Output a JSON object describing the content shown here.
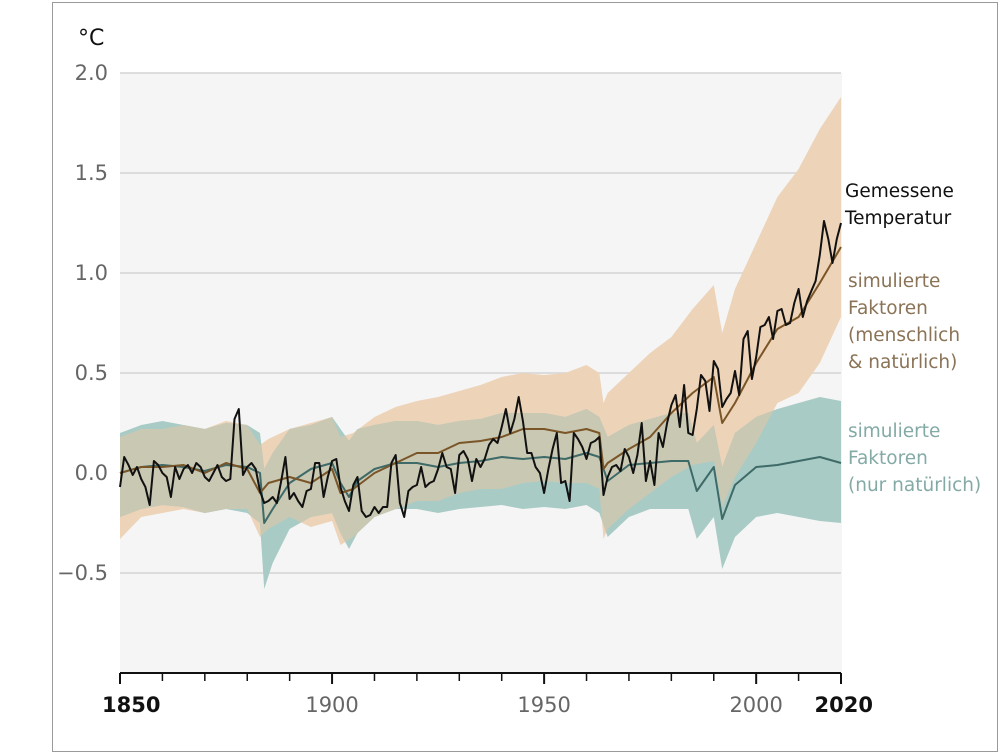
{
  "chart_data": {
    "type": "line",
    "unit_label": "°C",
    "x_range": [
      1850,
      2020
    ],
    "ylim": [
      -1.0,
      2.0
    ],
    "y_ticks": [
      {
        "value": 2.0,
        "label": "2.0"
      },
      {
        "value": 1.5,
        "label": "1.5"
      },
      {
        "value": 1.0,
        "label": "1.0"
      },
      {
        "value": 0.5,
        "label": "0.5"
      },
      {
        "value": 0.0,
        "label": "0.0"
      },
      {
        "value": -0.5,
        "label": "−0.5"
      }
    ],
    "x_ticks": [
      {
        "value": 1850,
        "label": "1850",
        "bold": true
      },
      {
        "value": 1900,
        "label": "1900",
        "bold": false
      },
      {
        "value": 1950,
        "label": "1950",
        "bold": false
      },
      {
        "value": 2000,
        "label": "2000",
        "bold": false
      },
      {
        "value": 2020,
        "label": "2020",
        "bold": true
      }
    ],
    "x_minor_ticks": [
      1860,
      1870,
      1880,
      1890,
      1910,
      1920,
      1930,
      1940,
      1960,
      1970,
      1980,
      1990,
      2010
    ],
    "grid": true,
    "colors": {
      "plot_bg": "#f5f5f5",
      "grid": "#d4d4d4",
      "observed": "#111111",
      "human_natural_line": "#7a5527",
      "human_natural_band": "#edd3b7",
      "natural_line": "#3e6a68",
      "natural_band": "#a9cbc6",
      "overlap_band": "#c9c8b3"
    },
    "series": [
      {
        "key": "observed",
        "name_lines": [
          "Gemessene",
          "Temperatur"
        ],
        "x": [
          1850,
          1851,
          1852,
          1853,
          1854,
          1855,
          1856,
          1857,
          1858,
          1859,
          1860,
          1861,
          1862,
          1863,
          1864,
          1865,
          1866,
          1867,
          1868,
          1869,
          1870,
          1871,
          1872,
          1873,
          1874,
          1875,
          1876,
          1877,
          1878,
          1879,
          1880,
          1881,
          1882,
          1883,
          1884,
          1885,
          1886,
          1887,
          1888,
          1889,
          1890,
          1891,
          1892,
          1893,
          1894,
          1895,
          1896,
          1897,
          1898,
          1899,
          1900,
          1901,
          1902,
          1903,
          1904,
          1905,
          1906,
          1907,
          1908,
          1909,
          1910,
          1911,
          1912,
          1913,
          1914,
          1915,
          1916,
          1917,
          1918,
          1919,
          1920,
          1921,
          1922,
          1923,
          1924,
          1925,
          1926,
          1927,
          1928,
          1929,
          1930,
          1931,
          1932,
          1933,
          1934,
          1935,
          1936,
          1937,
          1938,
          1939,
          1940,
          1941,
          1942,
          1943,
          1944,
          1945,
          1946,
          1947,
          1948,
          1949,
          1950,
          1951,
          1952,
          1953,
          1954,
          1955,
          1956,
          1957,
          1958,
          1959,
          1960,
          1961,
          1962,
          1963,
          1964,
          1965,
          1966,
          1967,
          1968,
          1969,
          1970,
          1971,
          1972,
          1973,
          1974,
          1975,
          1976,
          1977,
          1978,
          1979,
          1980,
          1981,
          1982,
          1983,
          1984,
          1985,
          1986,
          1987,
          1988,
          1989,
          1990,
          1991,
          1992,
          1993,
          1994,
          1995,
          1996,
          1997,
          1998,
          1999,
          2000,
          2001,
          2002,
          2003,
          2004,
          2005,
          2006,
          2007,
          2008,
          2009,
          2010,
          2011,
          2012,
          2013,
          2014,
          2015,
          2016,
          2017,
          2018,
          2019,
          2020
        ],
        "y": [
          -0.07,
          0.08,
          0.04,
          -0.01,
          0.03,
          -0.03,
          -0.07,
          -0.16,
          0.06,
          0.04,
          0.0,
          -0.02,
          -0.12,
          0.03,
          -0.03,
          0.02,
          0.04,
          0.0,
          0.05,
          0.03,
          -0.02,
          -0.04,
          0.0,
          0.04,
          -0.02,
          -0.04,
          -0.03,
          0.27,
          0.32,
          -0.01,
          0.03,
          0.05,
          0.02,
          -0.09,
          -0.15,
          -0.14,
          -0.12,
          -0.15,
          -0.04,
          0.08,
          -0.13,
          -0.1,
          -0.14,
          -0.17,
          -0.09,
          -0.08,
          0.05,
          0.05,
          -0.12,
          -0.02,
          0.06,
          0.07,
          -0.07,
          -0.14,
          -0.19,
          -0.06,
          -0.02,
          -0.19,
          -0.22,
          -0.21,
          -0.17,
          -0.2,
          -0.17,
          -0.17,
          0.05,
          0.09,
          -0.15,
          -0.22,
          -0.09,
          -0.07,
          -0.06,
          0.03,
          -0.07,
          -0.05,
          -0.04,
          0.02,
          0.1,
          0.03,
          0.02,
          -0.1,
          0.09,
          0.11,
          0.07,
          -0.04,
          0.07,
          0.03,
          0.07,
          0.14,
          0.17,
          0.15,
          0.23,
          0.32,
          0.2,
          0.27,
          0.38,
          0.26,
          0.1,
          0.1,
          0.03,
          0.0,
          -0.1,
          0.02,
          0.12,
          0.2,
          -0.05,
          -0.04,
          -0.14,
          0.2,
          0.17,
          0.13,
          0.07,
          0.15,
          0.16,
          0.18,
          -0.11,
          -0.02,
          0.03,
          0.04,
          0.01,
          0.12,
          0.08,
          0.0,
          0.09,
          0.25,
          -0.04,
          0.06,
          -0.06,
          0.2,
          0.13,
          0.25,
          0.34,
          0.39,
          0.23,
          0.44,
          0.2,
          0.19,
          0.32,
          0.49,
          0.46,
          0.31,
          0.56,
          0.52,
          0.33,
          0.37,
          0.4,
          0.51,
          0.39,
          0.67,
          0.71,
          0.47,
          0.58,
          0.73,
          0.74,
          0.78,
          0.67,
          0.81,
          0.82,
          0.74,
          0.75,
          0.85,
          0.92,
          0.78,
          0.86,
          0.91,
          0.96,
          1.09,
          1.26,
          1.17,
          1.05,
          1.17,
          1.25
        ]
      },
      {
        "key": "human_natural",
        "name_lines": [
          "simulierte",
          "Faktoren",
          "(menschlich",
          "& natürlich)"
        ],
        "x": [
          1850,
          1855,
          1860,
          1865,
          1870,
          1875,
          1880,
          1883,
          1885,
          1890,
          1895,
          1900,
          1902,
          1905,
          1910,
          1915,
          1920,
          1925,
          1930,
          1935,
          1940,
          1945,
          1950,
          1955,
          1960,
          1963,
          1964,
          1965,
          1970,
          1975,
          1980,
          1985,
          1990,
          1992,
          1995,
          2000,
          2005,
          2010,
          2015,
          2020
        ],
        "y": [
          0.0,
          0.03,
          0.03,
          0.04,
          0.0,
          0.05,
          0.02,
          -0.1,
          -0.05,
          -0.02,
          -0.05,
          0.02,
          -0.1,
          -0.08,
          0.0,
          0.05,
          0.1,
          0.1,
          0.15,
          0.16,
          0.18,
          0.22,
          0.22,
          0.2,
          0.22,
          0.2,
          0.02,
          0.05,
          0.12,
          0.18,
          0.3,
          0.4,
          0.48,
          0.25,
          0.35,
          0.55,
          0.72,
          0.78,
          0.95,
          1.13
        ],
        "band_upper": [
          0.18,
          0.22,
          0.22,
          0.24,
          0.22,
          0.26,
          0.24,
          0.14,
          0.17,
          0.22,
          0.25,
          0.28,
          0.18,
          0.2,
          0.28,
          0.33,
          0.36,
          0.38,
          0.41,
          0.44,
          0.48,
          0.5,
          0.49,
          0.5,
          0.54,
          0.5,
          0.35,
          0.4,
          0.5,
          0.6,
          0.68,
          0.82,
          0.94,
          0.7,
          0.92,
          1.15,
          1.38,
          1.52,
          1.72,
          1.88
        ],
        "band_lower": [
          -0.33,
          -0.22,
          -0.2,
          -0.18,
          -0.2,
          -0.18,
          -0.18,
          -0.32,
          -0.28,
          -0.22,
          -0.27,
          -0.24,
          -0.36,
          -0.32,
          -0.22,
          -0.18,
          -0.14,
          -0.14,
          -0.1,
          -0.08,
          -0.08,
          -0.05,
          -0.04,
          -0.05,
          -0.05,
          -0.08,
          -0.33,
          -0.28,
          -0.18,
          -0.1,
          -0.02,
          0.04,
          0.06,
          -0.17,
          -0.02,
          0.15,
          0.35,
          0.4,
          0.55,
          0.78
        ]
      },
      {
        "key": "natural",
        "name_lines": [
          "simulierte",
          "Faktoren",
          "(nur natürlich)"
        ],
        "x": [
          1850,
          1855,
          1860,
          1865,
          1870,
          1875,
          1880,
          1883,
          1884,
          1886,
          1890,
          1895,
          1900,
          1902,
          1904,
          1906,
          1910,
          1915,
          1920,
          1925,
          1930,
          1935,
          1940,
          1945,
          1950,
          1955,
          1960,
          1963,
          1965,
          1970,
          1975,
          1980,
          1984,
          1986,
          1990,
          1992,
          1995,
          2000,
          2005,
          2010,
          2015,
          2020
        ],
        "y": [
          0.0,
          0.03,
          0.04,
          0.03,
          0.01,
          0.04,
          0.03,
          0.0,
          -0.25,
          -0.18,
          -0.05,
          0.02,
          0.05,
          -0.05,
          -0.12,
          -0.04,
          0.02,
          0.05,
          0.05,
          0.03,
          0.05,
          0.06,
          0.08,
          0.07,
          0.08,
          0.07,
          0.1,
          0.08,
          -0.04,
          0.04,
          0.05,
          0.06,
          0.06,
          -0.09,
          0.03,
          -0.23,
          -0.06,
          0.03,
          0.04,
          0.06,
          0.08,
          0.05
        ],
        "band_upper": [
          0.2,
          0.24,
          0.26,
          0.24,
          0.22,
          0.25,
          0.24,
          0.2,
          0.02,
          0.1,
          0.22,
          0.24,
          0.28,
          0.22,
          0.16,
          0.22,
          0.24,
          0.26,
          0.26,
          0.24,
          0.26,
          0.27,
          0.3,
          0.3,
          0.3,
          0.28,
          0.32,
          0.28,
          0.18,
          0.24,
          0.27,
          0.3,
          0.3,
          0.15,
          0.24,
          0.03,
          0.2,
          0.28,
          0.32,
          0.35,
          0.38,
          0.36
        ],
        "band_lower": [
          -0.22,
          -0.18,
          -0.16,
          -0.17,
          -0.2,
          -0.18,
          -0.2,
          -0.25,
          -0.58,
          -0.45,
          -0.28,
          -0.22,
          -0.2,
          -0.3,
          -0.38,
          -0.3,
          -0.22,
          -0.18,
          -0.18,
          -0.2,
          -0.18,
          -0.17,
          -0.16,
          -0.18,
          -0.17,
          -0.18,
          -0.16,
          -0.2,
          -0.32,
          -0.22,
          -0.18,
          -0.18,
          -0.18,
          -0.33,
          -0.22,
          -0.48,
          -0.32,
          -0.22,
          -0.2,
          -0.22,
          -0.24,
          -0.25
        ]
      }
    ]
  }
}
